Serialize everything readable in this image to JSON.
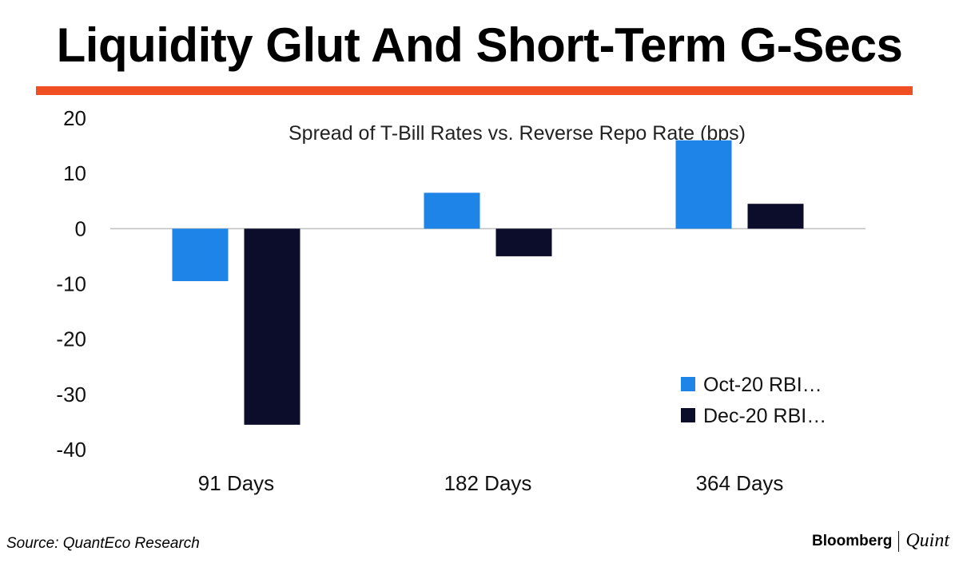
{
  "header": {
    "title": "Liquidity Glut And Short-Term G-Secs"
  },
  "colors": {
    "accent": "#f04e23",
    "series_1": "#1f84e8",
    "series_2": "#0c0d2b",
    "axis": "#bfbfbf"
  },
  "footer": {
    "source": "Source: QuantEco Research",
    "brand_main": "Bloomberg",
    "brand_sub": "Quint"
  },
  "chart_data": {
    "type": "bar",
    "title": "Spread of T-Bill Rates vs. Reverse Repo Rate (bps)",
    "xlabel": "",
    "ylabel": "",
    "categories": [
      "91 Days",
      "182 Days",
      "364 Days"
    ],
    "series": [
      {
        "name": "Oct-20 RBI…",
        "values": [
          -9.5,
          6.5,
          16
        ]
      },
      {
        "name": "Dec-20 RBI…",
        "values": [
          -35.5,
          -5,
          4.5
        ]
      }
    ],
    "ylim": [
      -40,
      20
    ],
    "yticks": [
      "20",
      "10",
      "0",
      "-10",
      "-20",
      "-30",
      "-40"
    ],
    "grid": false,
    "legend": "bottom-right"
  }
}
